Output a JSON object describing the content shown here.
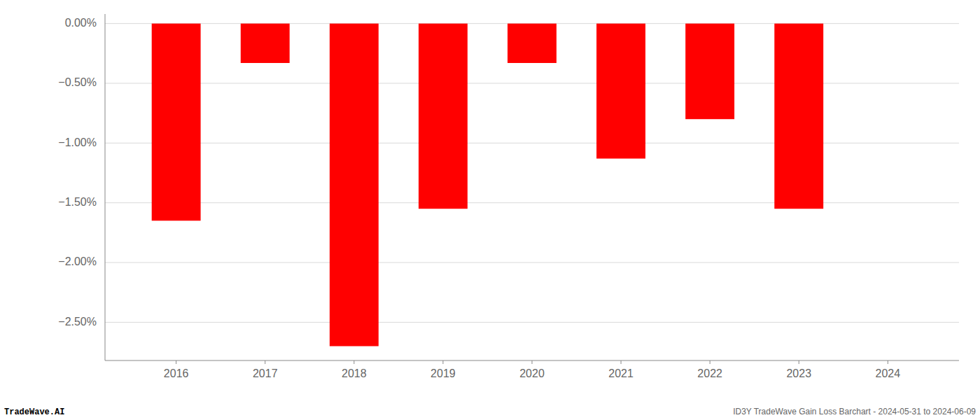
{
  "chart_data": {
    "type": "bar",
    "x": [
      2016,
      2017,
      2018,
      2019,
      2020,
      2021,
      2022,
      2023,
      2024
    ],
    "values": [
      -1.65,
      -0.33,
      -2.7,
      -1.55,
      -0.33,
      -1.13,
      -0.8,
      -1.55,
      0.0
    ],
    "color": "#ff0000",
    "xlim": [
      2015.2,
      2024.8
    ],
    "xticks": [
      2016,
      2017,
      2018,
      2019,
      2020,
      2021,
      2022,
      2023,
      2024
    ],
    "ylim": [
      -2.82,
      0.08
    ],
    "yticks": [
      {
        "value": 0.0,
        "label": "0.00%"
      },
      {
        "value": -0.5,
        "label": "−0.50%"
      },
      {
        "value": -1.0,
        "label": "−1.00%"
      },
      {
        "value": -1.5,
        "label": "−1.50%"
      },
      {
        "value": -2.0,
        "label": "−2.00%"
      },
      {
        "value": -2.5,
        "label": "−2.50%"
      }
    ],
    "grid": true,
    "annotations": [
      "TradeWave.AI",
      "ID3Y TradeWave Gain Loss Barchart - 2024-05-31 to 2024-06-09"
    ]
  }
}
